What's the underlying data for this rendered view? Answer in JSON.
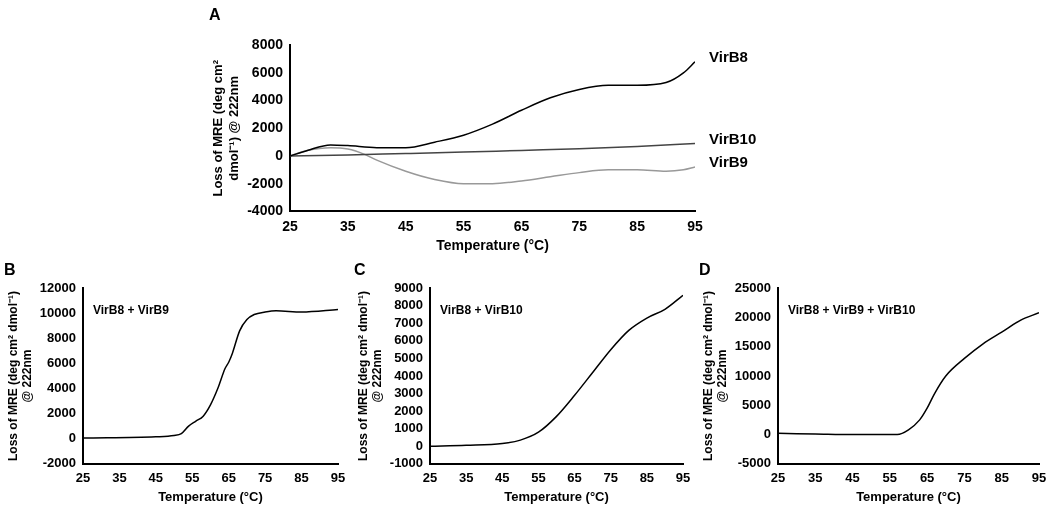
{
  "chart_data": [
    {
      "type": "line",
      "title": "A",
      "xlabel": "Temperature (°C)",
      "ylabel": "Loss of MRE (deg cm² dmol⁻¹) @ 222nm",
      "xlim": [
        25,
        95
      ],
      "xticks": [
        25,
        35,
        45,
        55,
        65,
        75,
        85,
        95
      ],
      "ylim": [
        -4000,
        8000
      ],
      "yticks": [
        -4000,
        -2000,
        0,
        2000,
        4000,
        6000,
        8000
      ],
      "grid": false,
      "legend": false,
      "marker": "none",
      "line_style": "solid",
      "series": [
        {
          "name": "VirB8",
          "color": "#000000",
          "x": [
            25,
            28,
            32,
            35,
            40,
            45,
            50,
            55,
            60,
            65,
            70,
            75,
            80,
            85,
            90,
            93,
            95
          ],
          "values": [
            0,
            400,
            800,
            750,
            600,
            600,
            1000,
            1500,
            2300,
            3300,
            4200,
            4800,
            5100,
            5100,
            5300,
            6000,
            6800
          ]
        },
        {
          "name": "VirB10",
          "color": "#444444",
          "x": [
            25,
            35,
            45,
            55,
            65,
            75,
            85,
            95
          ],
          "values": [
            0,
            80,
            180,
            280,
            400,
            520,
            680,
            900
          ]
        },
        {
          "name": "VirB9",
          "color": "#999999",
          "x": [
            25,
            28,
            32,
            35,
            38,
            40,
            45,
            50,
            55,
            60,
            65,
            70,
            75,
            80,
            85,
            90,
            93,
            95
          ],
          "values": [
            0,
            400,
            600,
            500,
            100,
            -300,
            -1100,
            -1700,
            -2000,
            -2000,
            -1800,
            -1500,
            -1200,
            -1000,
            -1000,
            -1100,
            -1000,
            -800
          ]
        }
      ]
    },
    {
      "type": "line",
      "title": "B",
      "xlabel": "Temperature (°C)",
      "ylabel": "Loss of MRE (deg cm² dmol⁻¹) @ 222nm",
      "annotations": [
        "VirB8 + VirB9"
      ],
      "xlim": [
        25,
        95
      ],
      "xticks": [
        25,
        35,
        45,
        55,
        65,
        75,
        85,
        95
      ],
      "ylim": [
        -2000,
        12000
      ],
      "yticks": [
        -2000,
        0,
        2000,
        4000,
        6000,
        8000,
        10000,
        12000
      ],
      "grid": false,
      "legend": false,
      "marker": "none",
      "line_style": "solid",
      "series": [
        {
          "color": "#000000",
          "x": [
            25,
            45,
            50,
            52,
            54,
            56,
            58,
            60,
            62,
            64,
            65,
            66,
            68,
            70,
            72,
            75,
            78,
            85,
            95
          ],
          "values": [
            50,
            150,
            250,
            400,
            1000,
            1400,
            1800,
            2700,
            4000,
            5600,
            6100,
            6800,
            8600,
            9500,
            9900,
            10100,
            10200,
            10100,
            10300
          ]
        }
      ]
    },
    {
      "type": "line",
      "title": "C",
      "xlabel": "Temperature (°C)",
      "ylabel": "Loss of MRE (deg cm² dmol⁻¹) @ 222nm",
      "annotations": [
        "VirB8 + VirB10"
      ],
      "xlim": [
        25,
        95
      ],
      "xticks": [
        25,
        35,
        45,
        55,
        65,
        75,
        85,
        95
      ],
      "ylim": [
        -1000,
        9000
      ],
      "yticks": [
        -1000,
        0,
        1000,
        2000,
        3000,
        4000,
        5000,
        6000,
        7000,
        8000,
        9000
      ],
      "grid": false,
      "legend": false,
      "marker": "none",
      "line_style": "solid",
      "series": [
        {
          "color": "#000000",
          "x": [
            25,
            35,
            45,
            50,
            55,
            60,
            65,
            70,
            75,
            80,
            85,
            90,
            95
          ],
          "values": [
            0,
            50,
            150,
            350,
            800,
            1700,
            2900,
            4200,
            5500,
            6600,
            7300,
            7800,
            8600
          ]
        }
      ]
    },
    {
      "type": "line",
      "title": "D",
      "xlabel": "Temperature (°C)",
      "ylabel": "Loss of MRE (deg cm² dmol⁻¹) @ 222nm",
      "annotations": [
        "VirB8 + VirB9 + VirB10"
      ],
      "xlim": [
        25,
        95
      ],
      "xticks": [
        25,
        35,
        45,
        55,
        65,
        75,
        85,
        95
      ],
      "ylim": [
        -5000,
        25000
      ],
      "yticks": [
        -5000,
        0,
        5000,
        10000,
        15000,
        20000,
        25000
      ],
      "grid": false,
      "legend": false,
      "marker": "none",
      "line_style": "solid",
      "series": [
        {
          "color": "#000000",
          "x": [
            25,
            35,
            45,
            55,
            57,
            60,
            63,
            65,
            67,
            70,
            75,
            80,
            85,
            90,
            95
          ],
          "values": [
            200,
            100,
            0,
            0,
            0,
            800,
            2500,
            4500,
            7000,
            10000,
            13000,
            15500,
            17500,
            19500,
            20800
          ]
        }
      ]
    }
  ]
}
